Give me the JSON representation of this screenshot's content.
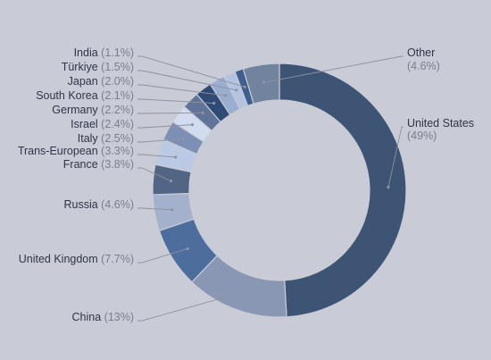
{
  "chart_data": {
    "type": "pie",
    "variant": "donut",
    "labels": [
      "United States",
      "China",
      "United Kingdom",
      "Russia",
      "France",
      "Trans-European",
      "Italy",
      "Israel",
      "Germany",
      "South Korea",
      "Japan",
      "Türkiye",
      "India",
      "Other"
    ],
    "values": [
      49,
      13,
      7.7,
      4.6,
      3.8,
      3.3,
      2.5,
      2.4,
      2.2,
      2.1,
      2.0,
      1.5,
      1.1,
      4.6
    ],
    "value_labels": [
      "(49%)",
      "(13%)",
      "(7.7%)",
      "(4.6%)",
      "(3.8%)",
      "(3.3%)",
      "(2.5%)",
      "(2.4%)",
      "(2.2%)",
      "(2.1%)",
      "(2.0%)",
      "(1.5%)",
      "(1.1%)",
      "(4.6%)"
    ],
    "colors": [
      "#3e5474",
      "#8997b4",
      "#4d6d9c",
      "#a3b1cd",
      "#526584",
      "#bcc9e4",
      "#7d8fb4",
      "#d1dcf0",
      "#5f7498",
      "#2f4a74",
      "#9aaed0",
      "#b4c3df",
      "#3f5f8f",
      "#71839f"
    ],
    "title": "",
    "legend": "none",
    "grid": false
  }
}
